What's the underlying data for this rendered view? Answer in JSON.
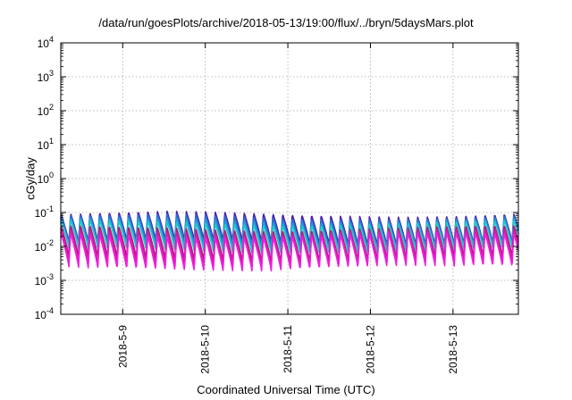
{
  "chart_data": {
    "type": "line",
    "title": "/data/run/goesPlots/archive/2018-05-13/19:00/flux/../bryn/5daysMars.plot",
    "xlabel": "Coordinated Universal Time (UTC)",
    "ylabel": "cGy/day",
    "yscale": "log",
    "ylim": [
      0.0001,
      10000
    ],
    "y_tick_labels": [
      {
        "base": "10",
        "exp": "-4",
        "value": 0.0001
      },
      {
        "base": "10",
        "exp": "-3",
        "value": 0.001
      },
      {
        "base": "10",
        "exp": "-2",
        "value": 0.01
      },
      {
        "base": "10",
        "exp": "-1",
        "value": 0.1
      },
      {
        "base": "10",
        "exp": "0",
        "value": 1
      },
      {
        "base": "10",
        "exp": "1",
        "value": 10
      },
      {
        "base": "10",
        "exp": "2",
        "value": 100
      },
      {
        "base": "10",
        "exp": "3",
        "value": 1000
      },
      {
        "base": "10",
        "exp": "4",
        "value": 10000
      }
    ],
    "xlim": [
      "2018-05-08 06:00",
      "2018-05-13 19:00"
    ],
    "x_ticks": [
      {
        "label": "2018-5-9",
        "date": "2018-05-09 00:00"
      },
      {
        "label": "2018-5-10",
        "date": "2018-05-10 00:00"
      },
      {
        "label": "2018-5-11",
        "date": "2018-05-11 00:00"
      },
      {
        "label": "2018-5-12",
        "date": "2018-05-12 00:00"
      },
      {
        "label": "2018-5-13",
        "date": "2018-05-13 00:00"
      }
    ],
    "grid": true,
    "legend": "none",
    "oscillation_period_hours": 2.8,
    "series": [
      {
        "color": "#4a1ea8",
        "peak": 0.09,
        "trough": 0.012
      },
      {
        "color": "#2a6fd6",
        "peak": 0.075,
        "trough": 0.01
      },
      {
        "color": "#1aa0d8",
        "peak": 0.06,
        "trough": 0.008
      },
      {
        "color": "#22c8c8",
        "peak": 0.05,
        "trough": 0.007
      },
      {
        "color": "#b01a78",
        "peak": 0.035,
        "trough": 0.004
      },
      {
        "color": "#d81aa8",
        "peak": 0.028,
        "trough": 0.003
      },
      {
        "color": "#f01ee0",
        "peak": 0.022,
        "trough": 0.0022
      }
    ]
  }
}
